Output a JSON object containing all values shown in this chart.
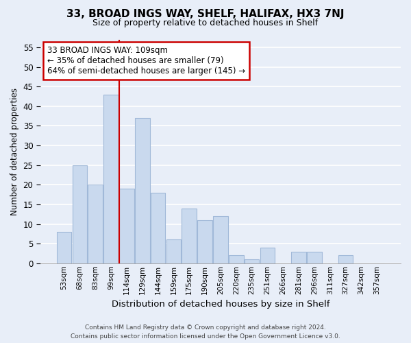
{
  "title_line1": "33, BROAD INGS WAY, SHELF, HALIFAX, HX3 7NJ",
  "title_line2": "Size of property relative to detached houses in Shelf",
  "xlabel": "Distribution of detached houses by size in Shelf",
  "ylabel": "Number of detached properties",
  "bar_labels": [
    "53sqm",
    "68sqm",
    "83sqm",
    "99sqm",
    "114sqm",
    "129sqm",
    "144sqm",
    "159sqm",
    "175sqm",
    "190sqm",
    "205sqm",
    "220sqm",
    "235sqm",
    "251sqm",
    "266sqm",
    "281sqm",
    "296sqm",
    "311sqm",
    "327sqm",
    "342sqm",
    "357sqm"
  ],
  "bar_values": [
    8,
    25,
    20,
    43,
    19,
    37,
    18,
    6,
    14,
    11,
    12,
    2,
    1,
    4,
    0,
    3,
    3,
    0,
    2,
    0,
    0
  ],
  "bar_color": "#c9d9ee",
  "bar_edge_color": "#a0b8d8",
  "vline_x": 4,
  "vline_color": "#cc0000",
  "ylim": [
    0,
    57
  ],
  "yticks": [
    0,
    5,
    10,
    15,
    20,
    25,
    30,
    35,
    40,
    45,
    50,
    55
  ],
  "annotation_line1": "33 BROAD INGS WAY: 109sqm",
  "annotation_line2": "← 35% of detached houses are smaller (79)",
  "annotation_line3": "64% of semi-detached houses are larger (145) →",
  "annotation_box_color": "#ffffff",
  "annotation_box_edge": "#cc0000",
  "footer_line1": "Contains HM Land Registry data © Crown copyright and database right 2024.",
  "footer_line2": "Contains public sector information licensed under the Open Government Licence v3.0.",
  "bg_color": "#e8eef8",
  "plot_bg_color": "#e8eef8",
  "grid_color": "#ffffff"
}
